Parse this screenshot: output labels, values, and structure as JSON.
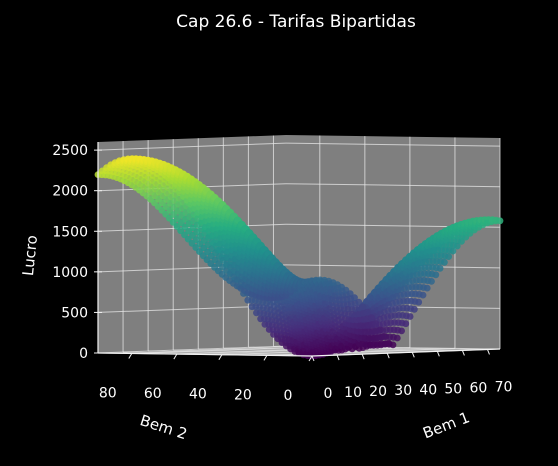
{
  "chart_data": {
    "type": "surface3d",
    "title": "Cap 26.6 - Tarifas Bipartidas",
    "xlabel": "Bem 1",
    "ylabel": "Bem 2",
    "zlabel": "Lucro",
    "x_ticks": [
      0,
      10,
      20,
      30,
      40,
      50,
      60,
      70
    ],
    "y_ticks": [
      0,
      20,
      40,
      60,
      80
    ],
    "z_ticks": [
      0,
      500,
      1000,
      1500,
      2000,
      2500
    ],
    "xlim": [
      0,
      75
    ],
    "ylim": [
      0,
      95
    ],
    "zlim": [
      0,
      2600
    ],
    "grid": true,
    "colormap": "viridis",
    "background": "#000000",
    "pane_color": "#7f7f7f",
    "surface_peaks": [
      {
        "x": 0,
        "y": 80,
        "z": 2400
      },
      {
        "x": 70,
        "y": 0,
        "z": 1600
      }
    ],
    "surface_min": {
      "x": 0,
      "y": 0,
      "z": 0
    }
  }
}
